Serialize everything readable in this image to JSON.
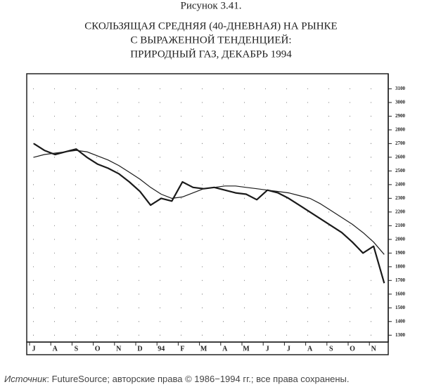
{
  "chart_data": {
    "type": "line",
    "figure_label": "Рисунок 3.41.",
    "title": [
      "СКОЛЬЗЯЩАЯ СРЕДНЯЯ (40-ДНЕВНАЯ) НА РЫНКЕ",
      "С ВЫРАЖЕННОЙ ТЕНДЕНЦИЕЙ:",
      "ПРИРОДНЫЙ ГАЗ, ДЕКАБРЬ 1994"
    ],
    "source_prefix": "Источник",
    "source_text": ": FutureSource; авторские права © 1986−1994 гг.; все права сохранены.",
    "categories": [
      "J",
      null,
      "A",
      null,
      "S",
      null,
      "O",
      null,
      "N",
      null,
      "D",
      null,
      "94",
      null,
      "F",
      null,
      "M",
      null,
      "A",
      null,
      "M",
      null,
      "J",
      null,
      "J",
      null,
      "A",
      null,
      "S",
      null,
      "O",
      null,
      "N",
      null
    ],
    "series": [
      {
        "color": "#1a1a1a",
        "values": [
          2700,
          2650,
          2620,
          2640,
          2660,
          2600,
          2550,
          2520,
          2480,
          2420,
          2350,
          2250,
          2300,
          2280,
          2420,
          2380,
          2370,
          2380,
          2360,
          2340,
          2330,
          2290,
          2360,
          2340,
          2300,
          2250,
          2200,
          2150,
          2100,
          2050,
          1980,
          1900,
          1950,
          1680
        ]
      },
      {
        "color": "#1a1a1a",
        "values": [
          2600,
          2620,
          2630,
          2640,
          2650,
          2640,
          2610,
          2580,
          2540,
          2490,
          2440,
          2380,
          2330,
          2300,
          2310,
          2340,
          2370,
          2380,
          2390,
          2390,
          2380,
          2370,
          2360,
          2350,
          2340,
          2320,
          2300,
          2260,
          2210,
          2160,
          2110,
          2050,
          1980,
          1890
        ]
      }
    ],
    "ylim": [
      1250,
      3210
    ],
    "yticks": [
      1300,
      1400,
      1500,
      1600,
      1700,
      1800,
      1900,
      2000,
      2100,
      2200,
      2300,
      2400,
      2500,
      2600,
      2700,
      2800,
      2900,
      3000,
      3100
    ],
    "grid": true
  }
}
